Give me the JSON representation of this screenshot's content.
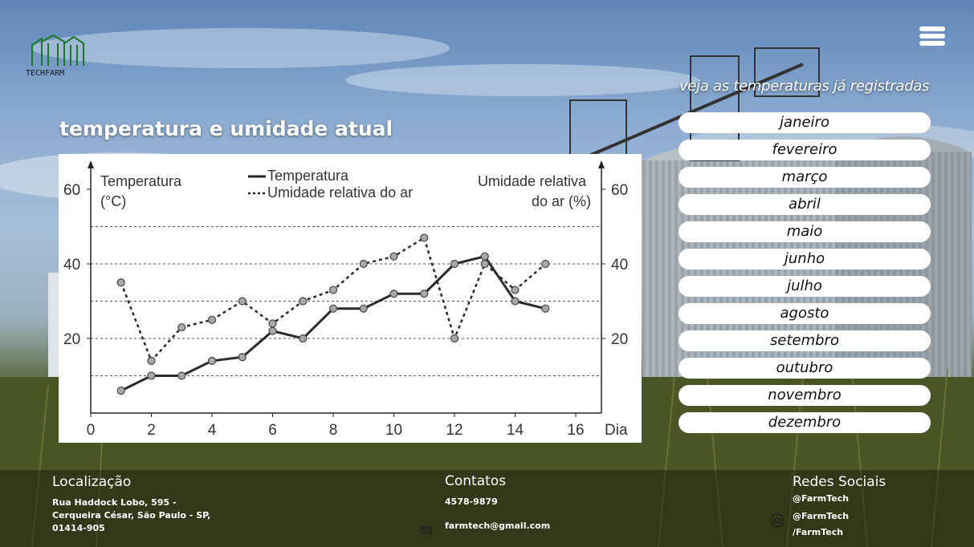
{
  "brand": {
    "logo_text": "TECHFARM"
  },
  "header": {
    "menu_icon": "hamburger-menu-icon"
  },
  "main": {
    "title": "temperatura e umidade atual"
  },
  "months_panel": {
    "heading": "veja as temperaturas já registradas",
    "months": [
      "janeiro",
      "fevereiro",
      "março",
      "abril",
      "maio",
      "junho",
      "julho",
      "agosto",
      "setembro",
      "outubro",
      "novembro",
      "dezembro"
    ]
  },
  "footer": {
    "location": {
      "title": "Localização",
      "lines": [
        "Rua Haddock Lobo, 595 -",
        "Cerqueira César, São Paulo - SP,",
        "01414-905"
      ]
    },
    "contacts": {
      "title": "Contatos",
      "phone": "4578-9879",
      "email": "farmtech@gmail.com"
    },
    "social": {
      "title": "Redes Sociais",
      "handles": [
        "@FarmTech",
        "@FarmTech",
        "/FarmTech"
      ]
    }
  },
  "chart_data": {
    "type": "line",
    "ylabel_left": [
      "Temperatura",
      "(°C)"
    ],
    "ylabel_right": [
      "Umidade relativa",
      "do ar (%)"
    ],
    "xlabel": "Dia",
    "x_ticks": [
      "0",
      "2",
      "4",
      "6",
      "8",
      "10",
      "12",
      "14",
      "16"
    ],
    "y_ticks": [
      "20",
      "40",
      "60"
    ],
    "xlim": [
      0,
      16
    ],
    "ylim": [
      0,
      60
    ],
    "grid": "dashed horizontal",
    "legend": "top-center",
    "x": [
      1,
      2,
      3,
      4,
      5,
      6,
      7,
      8,
      9,
      10,
      11,
      12,
      13,
      14,
      15
    ],
    "series": [
      {
        "name": "Temperatura",
        "style": "solid",
        "values": [
          6,
          10,
          10,
          14,
          15,
          22,
          20,
          28,
          28,
          32,
          32,
          40,
          42,
          30,
          28
        ]
      },
      {
        "name": "Umidade relativa do ar",
        "style": "dotted",
        "values": [
          35,
          14,
          23,
          25,
          30,
          24,
          30,
          33,
          40,
          42,
          47,
          20,
          40,
          33,
          40
        ]
      }
    ]
  }
}
